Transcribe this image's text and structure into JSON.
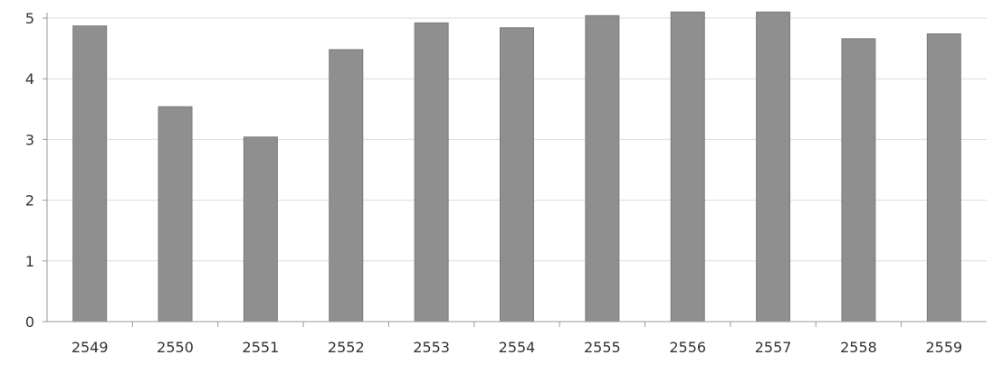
{
  "chart_data": {
    "type": "bar",
    "categories": [
      "2549",
      "2550",
      "2551",
      "2552",
      "2553",
      "2554",
      "2555",
      "2556",
      "2557",
      "2558",
      "2559"
    ],
    "values": [
      4.87,
      3.54,
      3.04,
      4.48,
      4.92,
      4.84,
      5.04,
      5.1,
      5.1,
      4.66,
      4.74
    ],
    "ylim": [
      0,
      5
    ],
    "yticks": [
      "0",
      "1",
      "2",
      "3",
      "4",
      "5"
    ],
    "grid": true,
    "legend": "none",
    "title": "",
    "xlabel": "",
    "ylabel": "",
    "colors": {
      "bar": "#8f8f8f",
      "bar_edge": "#7a7a7a",
      "grid": "#dcdcdc",
      "axis": "#9a9a9a"
    }
  }
}
